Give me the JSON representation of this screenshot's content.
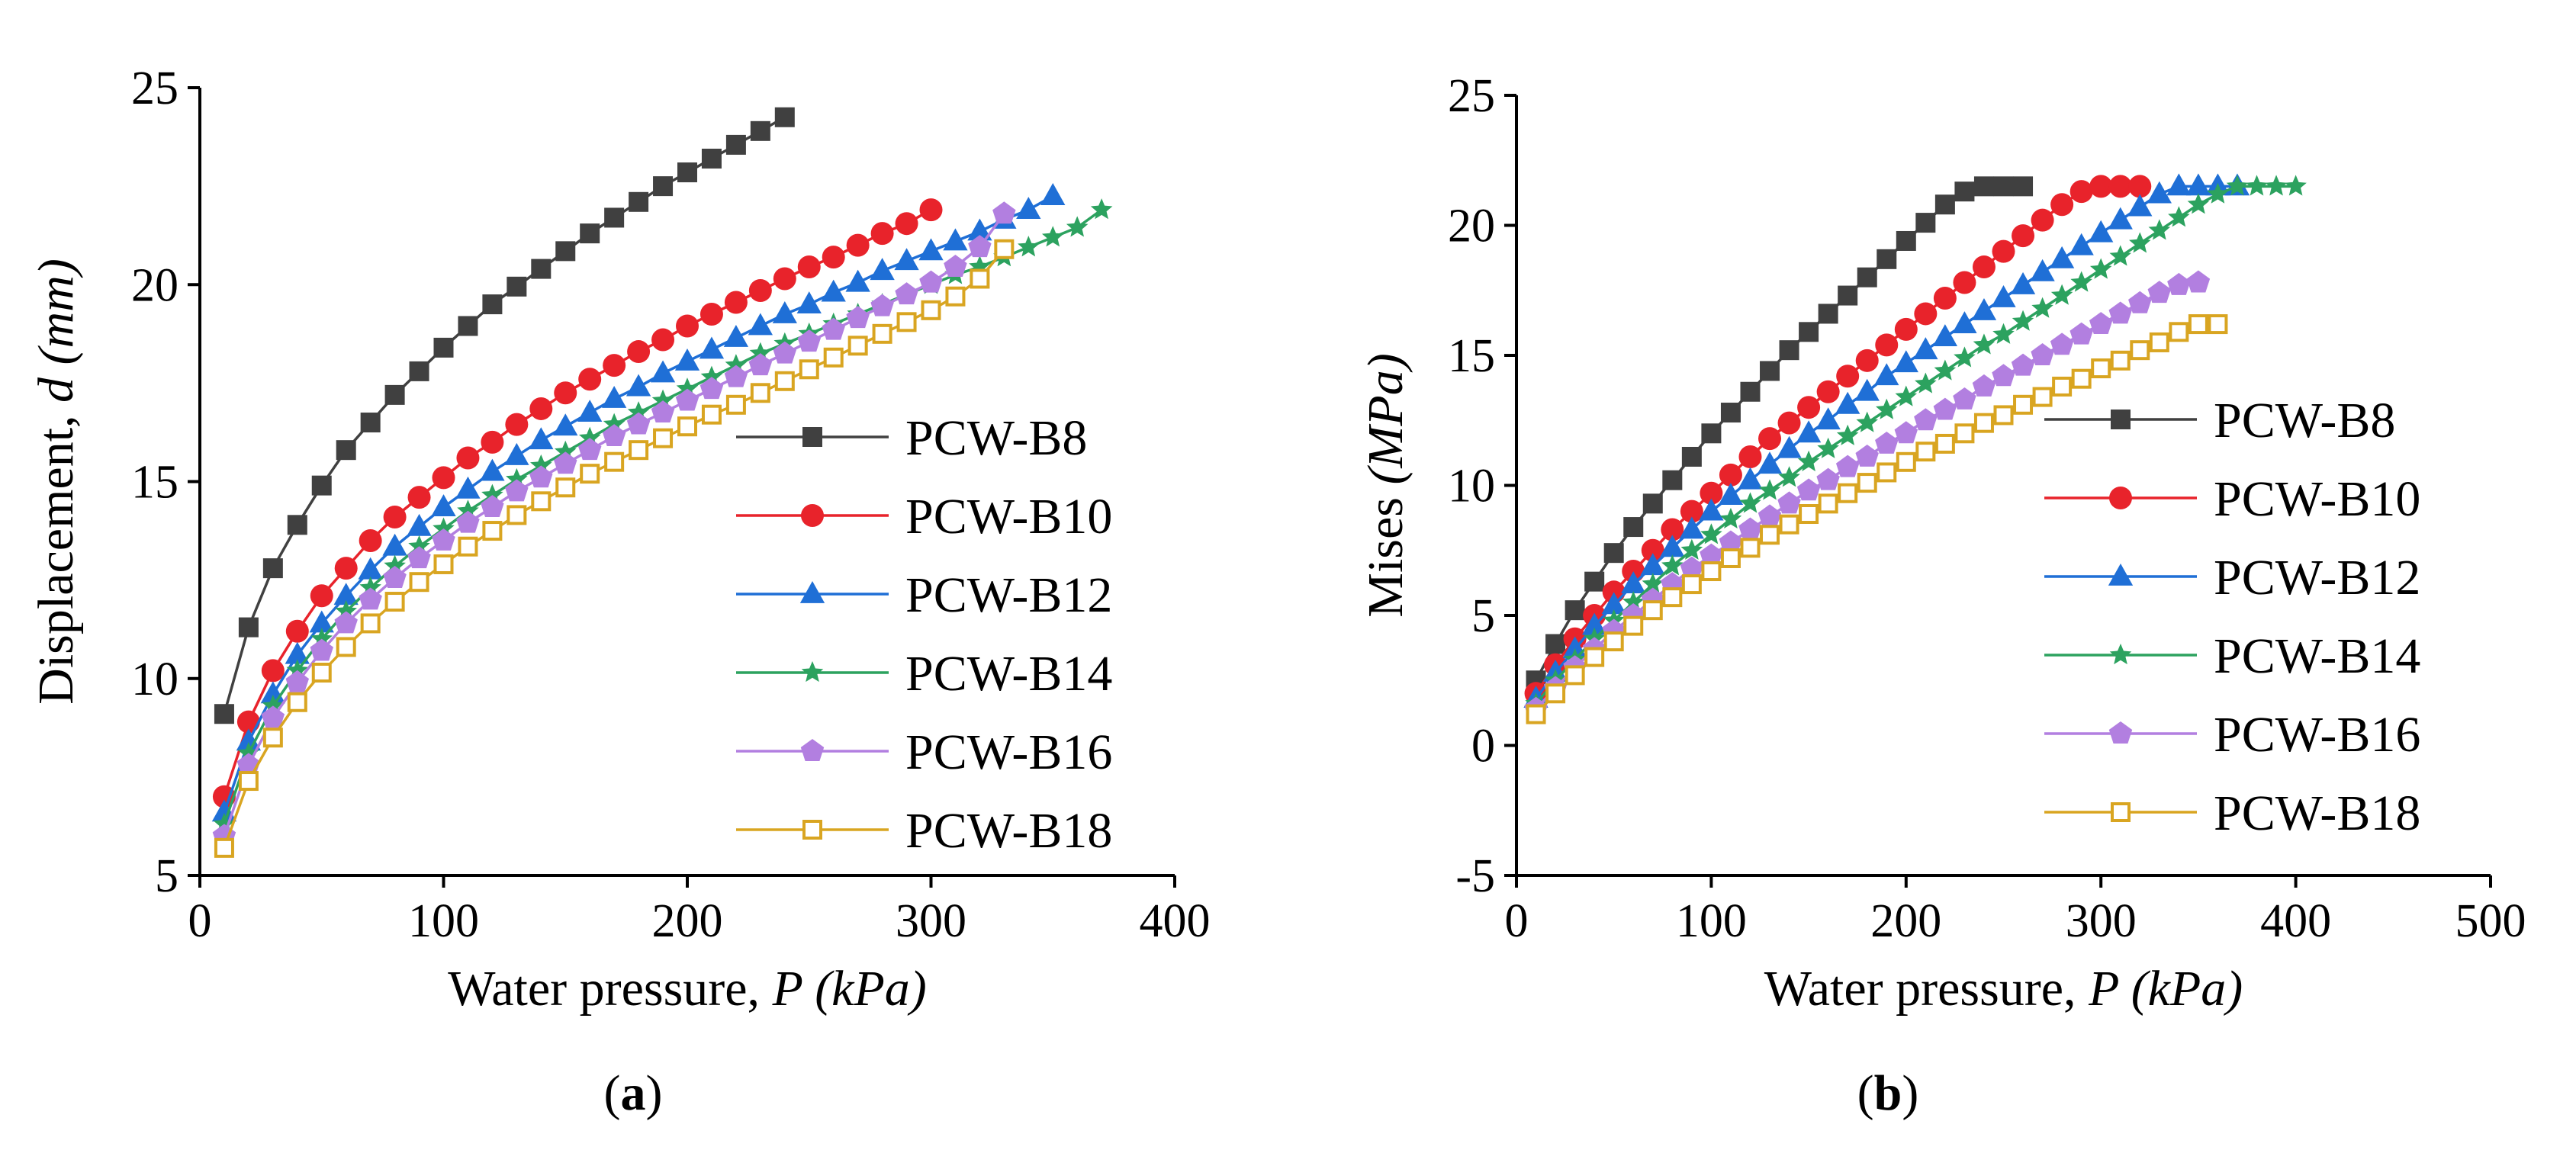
{
  "chart_data": [
    {
      "type": "line",
      "panel_label": "(a)",
      "xlabel": {
        "text": "Water pressure, ",
        "var": "P",
        "unit": " (kPa)"
      },
      "ylabel": {
        "text": "Displacement, ",
        "var": "d",
        "unit": " (mm)"
      },
      "xlim": [
        0,
        400
      ],
      "ylim": [
        5,
        25
      ],
      "xticks": [
        0,
        100,
        200,
        300,
        400
      ],
      "yticks": [
        5,
        10,
        15,
        20,
        25
      ],
      "grid": false,
      "legend_position": "lower-right",
      "series": [
        {
          "name": "PCW-B8",
          "color": "#404040",
          "marker": "square-filled",
          "x": [
            10,
            20,
            30,
            40,
            50,
            60,
            70,
            80,
            90,
            100,
            110,
            120,
            130,
            140,
            150,
            160,
            170,
            180,
            190,
            200,
            210,
            220,
            230,
            240
          ],
          "y": [
            9.1,
            11.3,
            12.8,
            13.9,
            14.9,
            15.8,
            16.5,
            17.2,
            17.8,
            18.4,
            18.95,
            19.5,
            19.95,
            20.4,
            20.85,
            21.3,
            21.7,
            22.1,
            22.5,
            22.85,
            23.2,
            23.55,
            23.9,
            24.25
          ]
        },
        {
          "name": "PCW-B10",
          "color": "#e8232b",
          "marker": "circle-filled",
          "x": [
            10,
            20,
            30,
            40,
            50,
            60,
            70,
            80,
            90,
            100,
            110,
            120,
            130,
            140,
            150,
            160,
            170,
            180,
            190,
            200,
            210,
            220,
            230,
            240,
            250,
            260,
            270,
            280,
            290,
            300
          ],
          "y": [
            7.0,
            8.9,
            10.2,
            11.2,
            12.1,
            12.8,
            13.5,
            14.1,
            14.6,
            15.1,
            15.6,
            16.0,
            16.45,
            16.85,
            17.25,
            17.6,
            17.95,
            18.3,
            18.6,
            18.95,
            19.25,
            19.55,
            19.85,
            20.15,
            20.45,
            20.7,
            21.0,
            21.3,
            21.55,
            21.9
          ]
        },
        {
          "name": "PCW-B12",
          "color": "#1f6fd6",
          "marker": "triangle-filled",
          "x": [
            10,
            20,
            30,
            40,
            50,
            60,
            70,
            80,
            90,
            100,
            110,
            120,
            130,
            140,
            150,
            160,
            170,
            180,
            190,
            200,
            210,
            220,
            230,
            240,
            250,
            260,
            270,
            280,
            290,
            300,
            310,
            320,
            330,
            340,
            350
          ],
          "y": [
            6.6,
            8.4,
            9.6,
            10.6,
            11.4,
            12.1,
            12.75,
            13.35,
            13.85,
            14.35,
            14.8,
            15.25,
            15.65,
            16.05,
            16.4,
            16.75,
            17.1,
            17.4,
            17.75,
            18.05,
            18.35,
            18.65,
            18.95,
            19.25,
            19.5,
            19.8,
            20.05,
            20.35,
            20.6,
            20.85,
            21.1,
            21.35,
            21.65,
            21.9,
            22.25
          ]
        },
        {
          "name": "PCW-B14",
          "color": "#2ca25f",
          "marker": "star",
          "x": [
            10,
            20,
            30,
            40,
            50,
            60,
            70,
            80,
            90,
            100,
            110,
            120,
            130,
            140,
            150,
            160,
            170,
            180,
            190,
            200,
            210,
            220,
            230,
            240,
            250,
            260,
            270,
            280,
            290,
            300,
            310,
            320,
            330,
            340,
            350,
            360,
            370
          ],
          "y": [
            6.3,
            8.1,
            9.3,
            10.2,
            11.0,
            11.7,
            12.3,
            12.85,
            13.35,
            13.8,
            14.25,
            14.65,
            15.05,
            15.4,
            15.75,
            16.1,
            16.45,
            16.75,
            17.05,
            17.35,
            17.65,
            17.95,
            18.25,
            18.5,
            18.75,
            19.0,
            19.25,
            19.5,
            19.75,
            20.0,
            20.25,
            20.45,
            20.7,
            20.95,
            21.2,
            21.45,
            21.9
          ]
        },
        {
          "name": "PCW-B16",
          "color": "#b27fe0",
          "marker": "pentagon-filled",
          "x": [
            10,
            20,
            30,
            40,
            50,
            60,
            70,
            80,
            90,
            100,
            110,
            120,
            130,
            140,
            150,
            160,
            170,
            180,
            190,
            200,
            210,
            220,
            230,
            240,
            250,
            260,
            270,
            280,
            290,
            300,
            310,
            320,
            330
          ],
          "y": [
            6.0,
            7.8,
            9.0,
            9.9,
            10.7,
            11.4,
            12.0,
            12.55,
            13.05,
            13.5,
            13.95,
            14.35,
            14.75,
            15.1,
            15.45,
            15.8,
            16.15,
            16.45,
            16.75,
            17.05,
            17.35,
            17.65,
            17.95,
            18.25,
            18.55,
            18.85,
            19.15,
            19.45,
            19.75,
            20.05,
            20.45,
            20.95,
            21.8
          ]
        },
        {
          "name": "PCW-B18",
          "color": "#d9a521",
          "marker": "square-open",
          "x": [
            10,
            20,
            30,
            40,
            50,
            60,
            70,
            80,
            90,
            100,
            110,
            120,
            130,
            140,
            150,
            160,
            170,
            180,
            190,
            200,
            210,
            220,
            230,
            240,
            250,
            260,
            270,
            280,
            290,
            300,
            310,
            320,
            330
          ],
          "y": [
            5.7,
            7.4,
            8.5,
            9.4,
            10.15,
            10.8,
            11.4,
            11.95,
            12.45,
            12.9,
            13.35,
            13.75,
            14.15,
            14.5,
            14.85,
            15.2,
            15.5,
            15.8,
            16.1,
            16.4,
            16.7,
            16.95,
            17.25,
            17.55,
            17.85,
            18.15,
            18.45,
            18.75,
            19.05,
            19.35,
            19.7,
            20.15,
            20.9
          ]
        }
      ]
    },
    {
      "type": "line",
      "panel_label": "(b)",
      "xlabel": {
        "text": "Water pressure, ",
        "var": "P",
        "unit": " (kPa)"
      },
      "ylabel": {
        "text": "Mises ",
        "var": "",
        "unit": "(MPa)"
      },
      "xlim": [
        0,
        500
      ],
      "ylim": [
        -5,
        25
      ],
      "xticks": [
        0,
        100,
        200,
        300,
        400,
        500
      ],
      "yticks": [
        -5,
        0,
        5,
        10,
        15,
        20,
        25
      ],
      "grid": false,
      "legend_position": "lower-right",
      "series": [
        {
          "name": "PCW-B8",
          "color": "#404040",
          "marker": "square-filled",
          "x": [
            10,
            20,
            30,
            40,
            50,
            60,
            70,
            80,
            90,
            100,
            110,
            120,
            130,
            140,
            150,
            160,
            170,
            180,
            190,
            200,
            210,
            220,
            230,
            240,
            250,
            260
          ],
          "y": [
            2.5,
            3.9,
            5.2,
            6.3,
            7.4,
            8.4,
            9.3,
            10.2,
            11.1,
            12.0,
            12.8,
            13.6,
            14.4,
            15.2,
            15.9,
            16.6,
            17.3,
            18.0,
            18.7,
            19.4,
            20.1,
            20.8,
            21.3,
            21.5,
            21.5,
            21.5
          ]
        },
        {
          "name": "PCW-B10",
          "color": "#e8232b",
          "marker": "circle-filled",
          "x": [
            10,
            20,
            30,
            40,
            50,
            60,
            70,
            80,
            90,
            100,
            110,
            120,
            130,
            140,
            150,
            160,
            170,
            180,
            190,
            200,
            210,
            220,
            230,
            240,
            250,
            260,
            270,
            280,
            290,
            300,
            310,
            320
          ],
          "y": [
            2.0,
            3.1,
            4.1,
            5.0,
            5.9,
            6.7,
            7.5,
            8.3,
            9.0,
            9.7,
            10.4,
            11.1,
            11.8,
            12.4,
            13.0,
            13.6,
            14.2,
            14.8,
            15.4,
            16.0,
            16.6,
            17.2,
            17.8,
            18.4,
            19.0,
            19.6,
            20.2,
            20.8,
            21.3,
            21.5,
            21.5,
            21.5
          ]
        },
        {
          "name": "PCW-B12",
          "color": "#1f6fd6",
          "marker": "triangle-filled",
          "x": [
            10,
            20,
            30,
            40,
            50,
            60,
            70,
            80,
            90,
            100,
            110,
            120,
            130,
            140,
            150,
            160,
            170,
            180,
            190,
            200,
            210,
            220,
            230,
            240,
            250,
            260,
            270,
            280,
            290,
            300,
            310,
            320,
            330,
            340,
            350,
            360,
            370
          ],
          "y": [
            1.8,
            2.8,
            3.7,
            4.6,
            5.4,
            6.2,
            6.9,
            7.6,
            8.3,
            9.0,
            9.6,
            10.2,
            10.8,
            11.4,
            12.0,
            12.5,
            13.1,
            13.6,
            14.2,
            14.7,
            15.2,
            15.7,
            16.2,
            16.7,
            17.2,
            17.7,
            18.2,
            18.7,
            19.2,
            19.7,
            20.2,
            20.7,
            21.2,
            21.5,
            21.5,
            21.5,
            21.5
          ]
        },
        {
          "name": "PCW-B14",
          "color": "#2ca25f",
          "marker": "star",
          "x": [
            10,
            20,
            30,
            40,
            50,
            60,
            70,
            80,
            90,
            100,
            110,
            120,
            130,
            140,
            150,
            160,
            170,
            180,
            190,
            200,
            210,
            220,
            230,
            240,
            250,
            260,
            270,
            280,
            290,
            300,
            310,
            320,
            330,
            340,
            350,
            360,
            370,
            380,
            390,
            400
          ],
          "y": [
            1.6,
            2.5,
            3.3,
            4.1,
            4.8,
            5.5,
            6.2,
            6.9,
            7.5,
            8.1,
            8.7,
            9.3,
            9.8,
            10.3,
            10.9,
            11.4,
            11.9,
            12.4,
            12.9,
            13.4,
            13.9,
            14.4,
            14.9,
            15.4,
            15.8,
            16.3,
            16.8,
            17.3,
            17.8,
            18.3,
            18.8,
            19.3,
            19.8,
            20.3,
            20.8,
            21.2,
            21.5,
            21.5,
            21.5,
            21.5
          ]
        },
        {
          "name": "PCW-B16",
          "color": "#b27fe0",
          "marker": "pentagon-filled",
          "x": [
            10,
            20,
            30,
            40,
            50,
            60,
            70,
            80,
            90,
            100,
            110,
            120,
            130,
            140,
            150,
            160,
            170,
            180,
            190,
            200,
            210,
            220,
            230,
            240,
            250,
            260,
            270,
            280,
            290,
            300,
            310,
            320,
            330,
            340,
            350
          ],
          "y": [
            1.4,
            2.2,
            3.0,
            3.7,
            4.4,
            5.0,
            5.6,
            6.2,
            6.8,
            7.3,
            7.8,
            8.3,
            8.8,
            9.3,
            9.8,
            10.2,
            10.7,
            11.1,
            11.6,
            12.0,
            12.5,
            12.9,
            13.3,
            13.8,
            14.2,
            14.6,
            15.0,
            15.4,
            15.8,
            16.2,
            16.6,
            17.0,
            17.4,
            17.7,
            17.8
          ]
        },
        {
          "name": "PCW-B18",
          "color": "#d9a521",
          "marker": "square-open",
          "x": [
            10,
            20,
            30,
            40,
            50,
            60,
            70,
            80,
            90,
            100,
            110,
            120,
            130,
            140,
            150,
            160,
            170,
            180,
            190,
            200,
            210,
            220,
            230,
            240,
            250,
            260,
            270,
            280,
            290,
            300,
            310,
            320,
            330,
            340,
            350,
            360
          ],
          "y": [
            1.2,
            2.0,
            2.7,
            3.4,
            4.0,
            4.6,
            5.2,
            5.7,
            6.2,
            6.7,
            7.2,
            7.6,
            8.1,
            8.5,
            8.9,
            9.3,
            9.7,
            10.1,
            10.5,
            10.9,
            11.3,
            11.6,
            12.0,
            12.4,
            12.7,
            13.1,
            13.4,
            13.8,
            14.1,
            14.5,
            14.8,
            15.2,
            15.5,
            15.9,
            16.2,
            16.2
          ]
        }
      ]
    }
  ]
}
